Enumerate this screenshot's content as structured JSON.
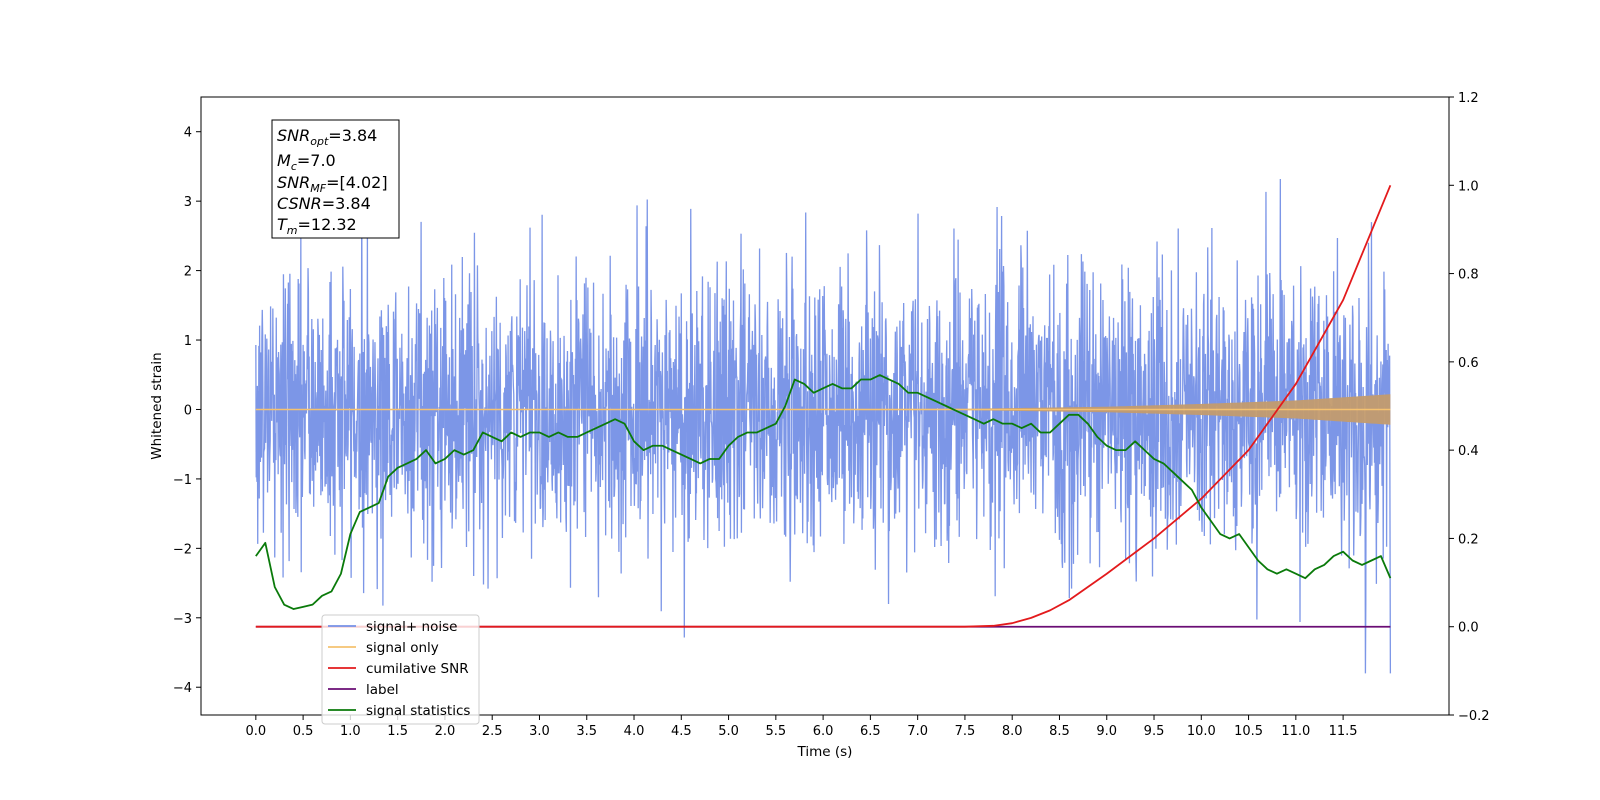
{
  "chart_data": {
    "type": "line",
    "xlabel": "Time (s)",
    "ylabel": "Whitened strain",
    "xlim": [
      -0.58,
      12.62
    ],
    "ylim": [
      -4.4,
      4.5
    ],
    "y2lim": [
      -0.2,
      1.2
    ],
    "x_ticks": [
      "0.0",
      "0.5",
      "1.0",
      "1.5",
      "2.0",
      "2.5",
      "3.0",
      "3.5",
      "4.0",
      "4.5",
      "5.0",
      "5.5",
      "6.0",
      "6.5",
      "7.0",
      "7.5",
      "8.0",
      "8.5",
      "9.0",
      "9.5",
      "10.0",
      "10.5",
      "11.0",
      "11.5"
    ],
    "y_ticks": [
      "4",
      "3",
      "2",
      "1",
      "0",
      "−1",
      "−2",
      "−3",
      "−4"
    ],
    "y2_ticks": [
      "1.2",
      "1.0",
      "0.8",
      "0.6",
      "0.4",
      "0.2",
      "0.0",
      "−0.2"
    ],
    "grid": false,
    "legend_position": "bottom-left",
    "series": [
      {
        "name": "signal+ noise",
        "axis": "left",
        "color": "#7590e6",
        "envelope_x": [
          0,
          12.0
        ],
        "envelope_y": [
          -2.4,
          2.4
        ],
        "x_range": [
          0,
          12.0
        ]
      },
      {
        "name": "signal only",
        "axis": "left",
        "color": "#f5c270",
        "envelope_x": [
          0,
          7.5,
          9,
          10,
          11,
          12
        ],
        "envelope_amp": [
          0.0,
          0.01,
          0.04,
          0.08,
          0.13,
          0.22
        ]
      },
      {
        "name": "cumilative SNR",
        "axis": "right",
        "color": "#e31a1c",
        "x": [
          0,
          7.5,
          7.8,
          8.0,
          8.2,
          8.4,
          8.6,
          8.8,
          9.0,
          9.5,
          10.0,
          10.5,
          11.0,
          11.5,
          12.0
        ],
        "y": [
          0.0,
          0.0,
          0.002,
          0.008,
          0.02,
          0.037,
          0.06,
          0.09,
          0.12,
          0.2,
          0.29,
          0.4,
          0.55,
          0.74,
          1.0
        ]
      },
      {
        "name": "label",
        "axis": "right",
        "color": "#6a0d75",
        "x": [
          0,
          12.0
        ],
        "y": [
          0.0,
          0.0
        ]
      },
      {
        "name": "signal statistics",
        "axis": "right",
        "color": "#0a7a0a",
        "x": [
          0,
          0.1,
          0.2,
          0.3,
          0.4,
          0.5,
          0.6,
          0.7,
          0.8,
          0.9,
          1.0,
          1.1,
          1.2,
          1.3,
          1.4,
          1.5,
          1.6,
          1.7,
          1.8,
          1.9,
          2.0,
          2.1,
          2.2,
          2.3,
          2.4,
          2.5,
          2.6,
          2.7,
          2.8,
          2.9,
          3.0,
          3.1,
          3.2,
          3.3,
          3.4,
          3.5,
          3.6,
          3.7,
          3.8,
          3.9,
          4.0,
          4.1,
          4.2,
          4.3,
          4.4,
          4.5,
          4.6,
          4.7,
          4.8,
          4.9,
          5.0,
          5.1,
          5.2,
          5.3,
          5.4,
          5.5,
          5.6,
          5.7,
          5.8,
          5.9,
          6.0,
          6.1,
          6.2,
          6.3,
          6.4,
          6.5,
          6.6,
          6.7,
          6.8,
          6.9,
          7.0,
          7.1,
          7.2,
          7.3,
          7.4,
          7.5,
          7.6,
          7.7,
          7.8,
          7.9,
          8.0,
          8.1,
          8.2,
          8.3,
          8.4,
          8.5,
          8.6,
          8.7,
          8.8,
          8.9,
          9.0,
          9.1,
          9.2,
          9.3,
          9.4,
          9.5,
          9.6,
          9.7,
          9.8,
          9.9,
          10.0,
          10.1,
          10.2,
          10.3,
          10.4,
          10.5,
          10.6,
          10.7,
          10.8,
          10.9,
          11.0,
          11.1,
          11.2,
          11.3,
          11.4,
          11.5,
          11.6,
          11.7,
          11.8,
          11.9,
          12.0
        ],
        "y": [
          0.16,
          0.19,
          0.09,
          0.05,
          0.04,
          0.045,
          0.05,
          0.07,
          0.08,
          0.12,
          0.21,
          0.26,
          0.27,
          0.28,
          0.34,
          0.36,
          0.37,
          0.38,
          0.4,
          0.37,
          0.38,
          0.4,
          0.39,
          0.4,
          0.44,
          0.43,
          0.42,
          0.44,
          0.43,
          0.44,
          0.44,
          0.43,
          0.44,
          0.43,
          0.43,
          0.44,
          0.45,
          0.46,
          0.47,
          0.46,
          0.42,
          0.4,
          0.41,
          0.41,
          0.4,
          0.39,
          0.38,
          0.37,
          0.38,
          0.38,
          0.41,
          0.43,
          0.44,
          0.44,
          0.45,
          0.46,
          0.5,
          0.56,
          0.55,
          0.53,
          0.54,
          0.55,
          0.54,
          0.54,
          0.56,
          0.56,
          0.57,
          0.56,
          0.55,
          0.53,
          0.53,
          0.52,
          0.51,
          0.5,
          0.49,
          0.48,
          0.47,
          0.46,
          0.47,
          0.46,
          0.46,
          0.45,
          0.46,
          0.44,
          0.44,
          0.46,
          0.48,
          0.48,
          0.46,
          0.43,
          0.41,
          0.4,
          0.4,
          0.42,
          0.4,
          0.38,
          0.37,
          0.35,
          0.33,
          0.31,
          0.27,
          0.24,
          0.21,
          0.2,
          0.21,
          0.18,
          0.15,
          0.13,
          0.12,
          0.13,
          0.12,
          0.11,
          0.13,
          0.14,
          0.16,
          0.17,
          0.15,
          0.14,
          0.15,
          0.16,
          0.11
        ]
      }
    ],
    "annotation": [
      {
        "base": "SNR",
        "sub": "opt",
        "value": "=3.84"
      },
      {
        "base": "M",
        "sub": "c",
        "value": "=7.0"
      },
      {
        "base": "SNR",
        "sub": "MF",
        "value": "=[4.02]"
      },
      {
        "base": "CSNR",
        "sub": "",
        "value": "=3.84"
      },
      {
        "base": "T",
        "sub": "m",
        "value": "=12.32"
      }
    ]
  }
}
